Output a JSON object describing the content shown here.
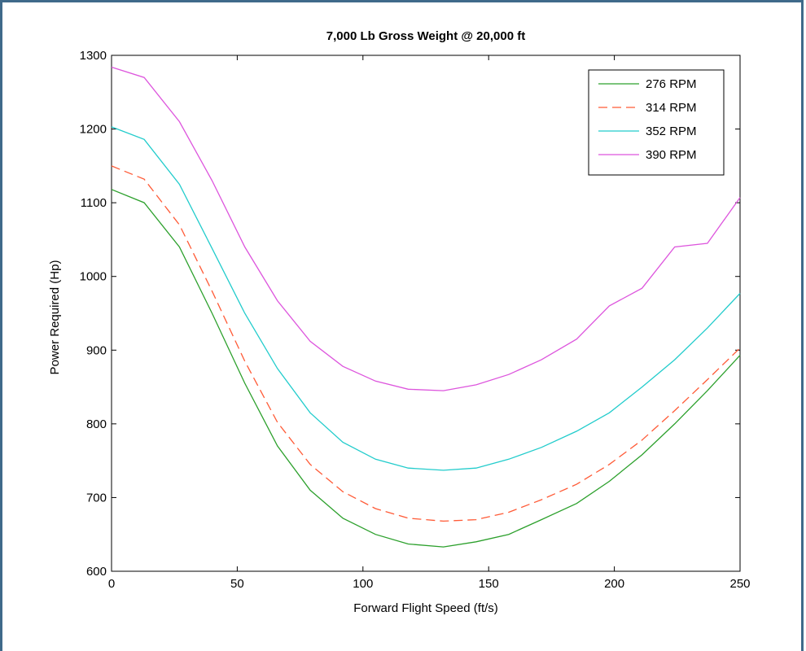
{
  "chart_data": {
    "type": "line",
    "title": "7,000 Lb Gross Weight @ 20,000 ft",
    "xlabel": "Forward Flight Speed (ft/s)",
    "ylabel": "Power Required (Hp)",
    "xlim": [
      0,
      250
    ],
    "ylim": [
      600,
      1300
    ],
    "xticks": [
      "0",
      "50",
      "100",
      "150",
      "200",
      "250"
    ],
    "yticks": [
      "600",
      "700",
      "800",
      "900",
      "1000",
      "1100",
      "1200",
      "1300"
    ],
    "grid": false,
    "legend_position": "top-right",
    "x": [
      0,
      13,
      27,
      40,
      53,
      66,
      79,
      92,
      105,
      118,
      132,
      145,
      158,
      171,
      185,
      198,
      211,
      224,
      237,
      250
    ],
    "series": [
      {
        "name": "276 RPM",
        "color": "#2ca02c",
        "dash": "solid",
        "values": [
          1118,
          1100,
          1040,
          950,
          855,
          770,
          710,
          672,
          650,
          637,
          633,
          640,
          650,
          670,
          692,
          722,
          758,
          800,
          845,
          893
        ]
      },
      {
        "name": "314 RPM",
        "color": "#ff5a36",
        "dash": "dashed",
        "values": [
          1150,
          1132,
          1070,
          980,
          885,
          802,
          745,
          708,
          685,
          672,
          668,
          670,
          680,
          697,
          718,
          745,
          778,
          818,
          860,
          903
        ]
      },
      {
        "name": "352 RPM",
        "color": "#22cccc",
        "dash": "solid",
        "values": [
          1203,
          1186,
          1125,
          1038,
          950,
          875,
          815,
          775,
          752,
          740,
          737,
          740,
          752,
          768,
          790,
          815,
          850,
          887,
          930,
          977
        ]
      },
      {
        "name": "390 RPM",
        "color": "#dd55dd",
        "dash": "solid",
        "values": [
          1284,
          1270,
          1210,
          1130,
          1040,
          967,
          912,
          878,
          858,
          847,
          845,
          853,
          867,
          887,
          915,
          960,
          984,
          1040,
          1045,
          1107
        ]
      }
    ]
  }
}
